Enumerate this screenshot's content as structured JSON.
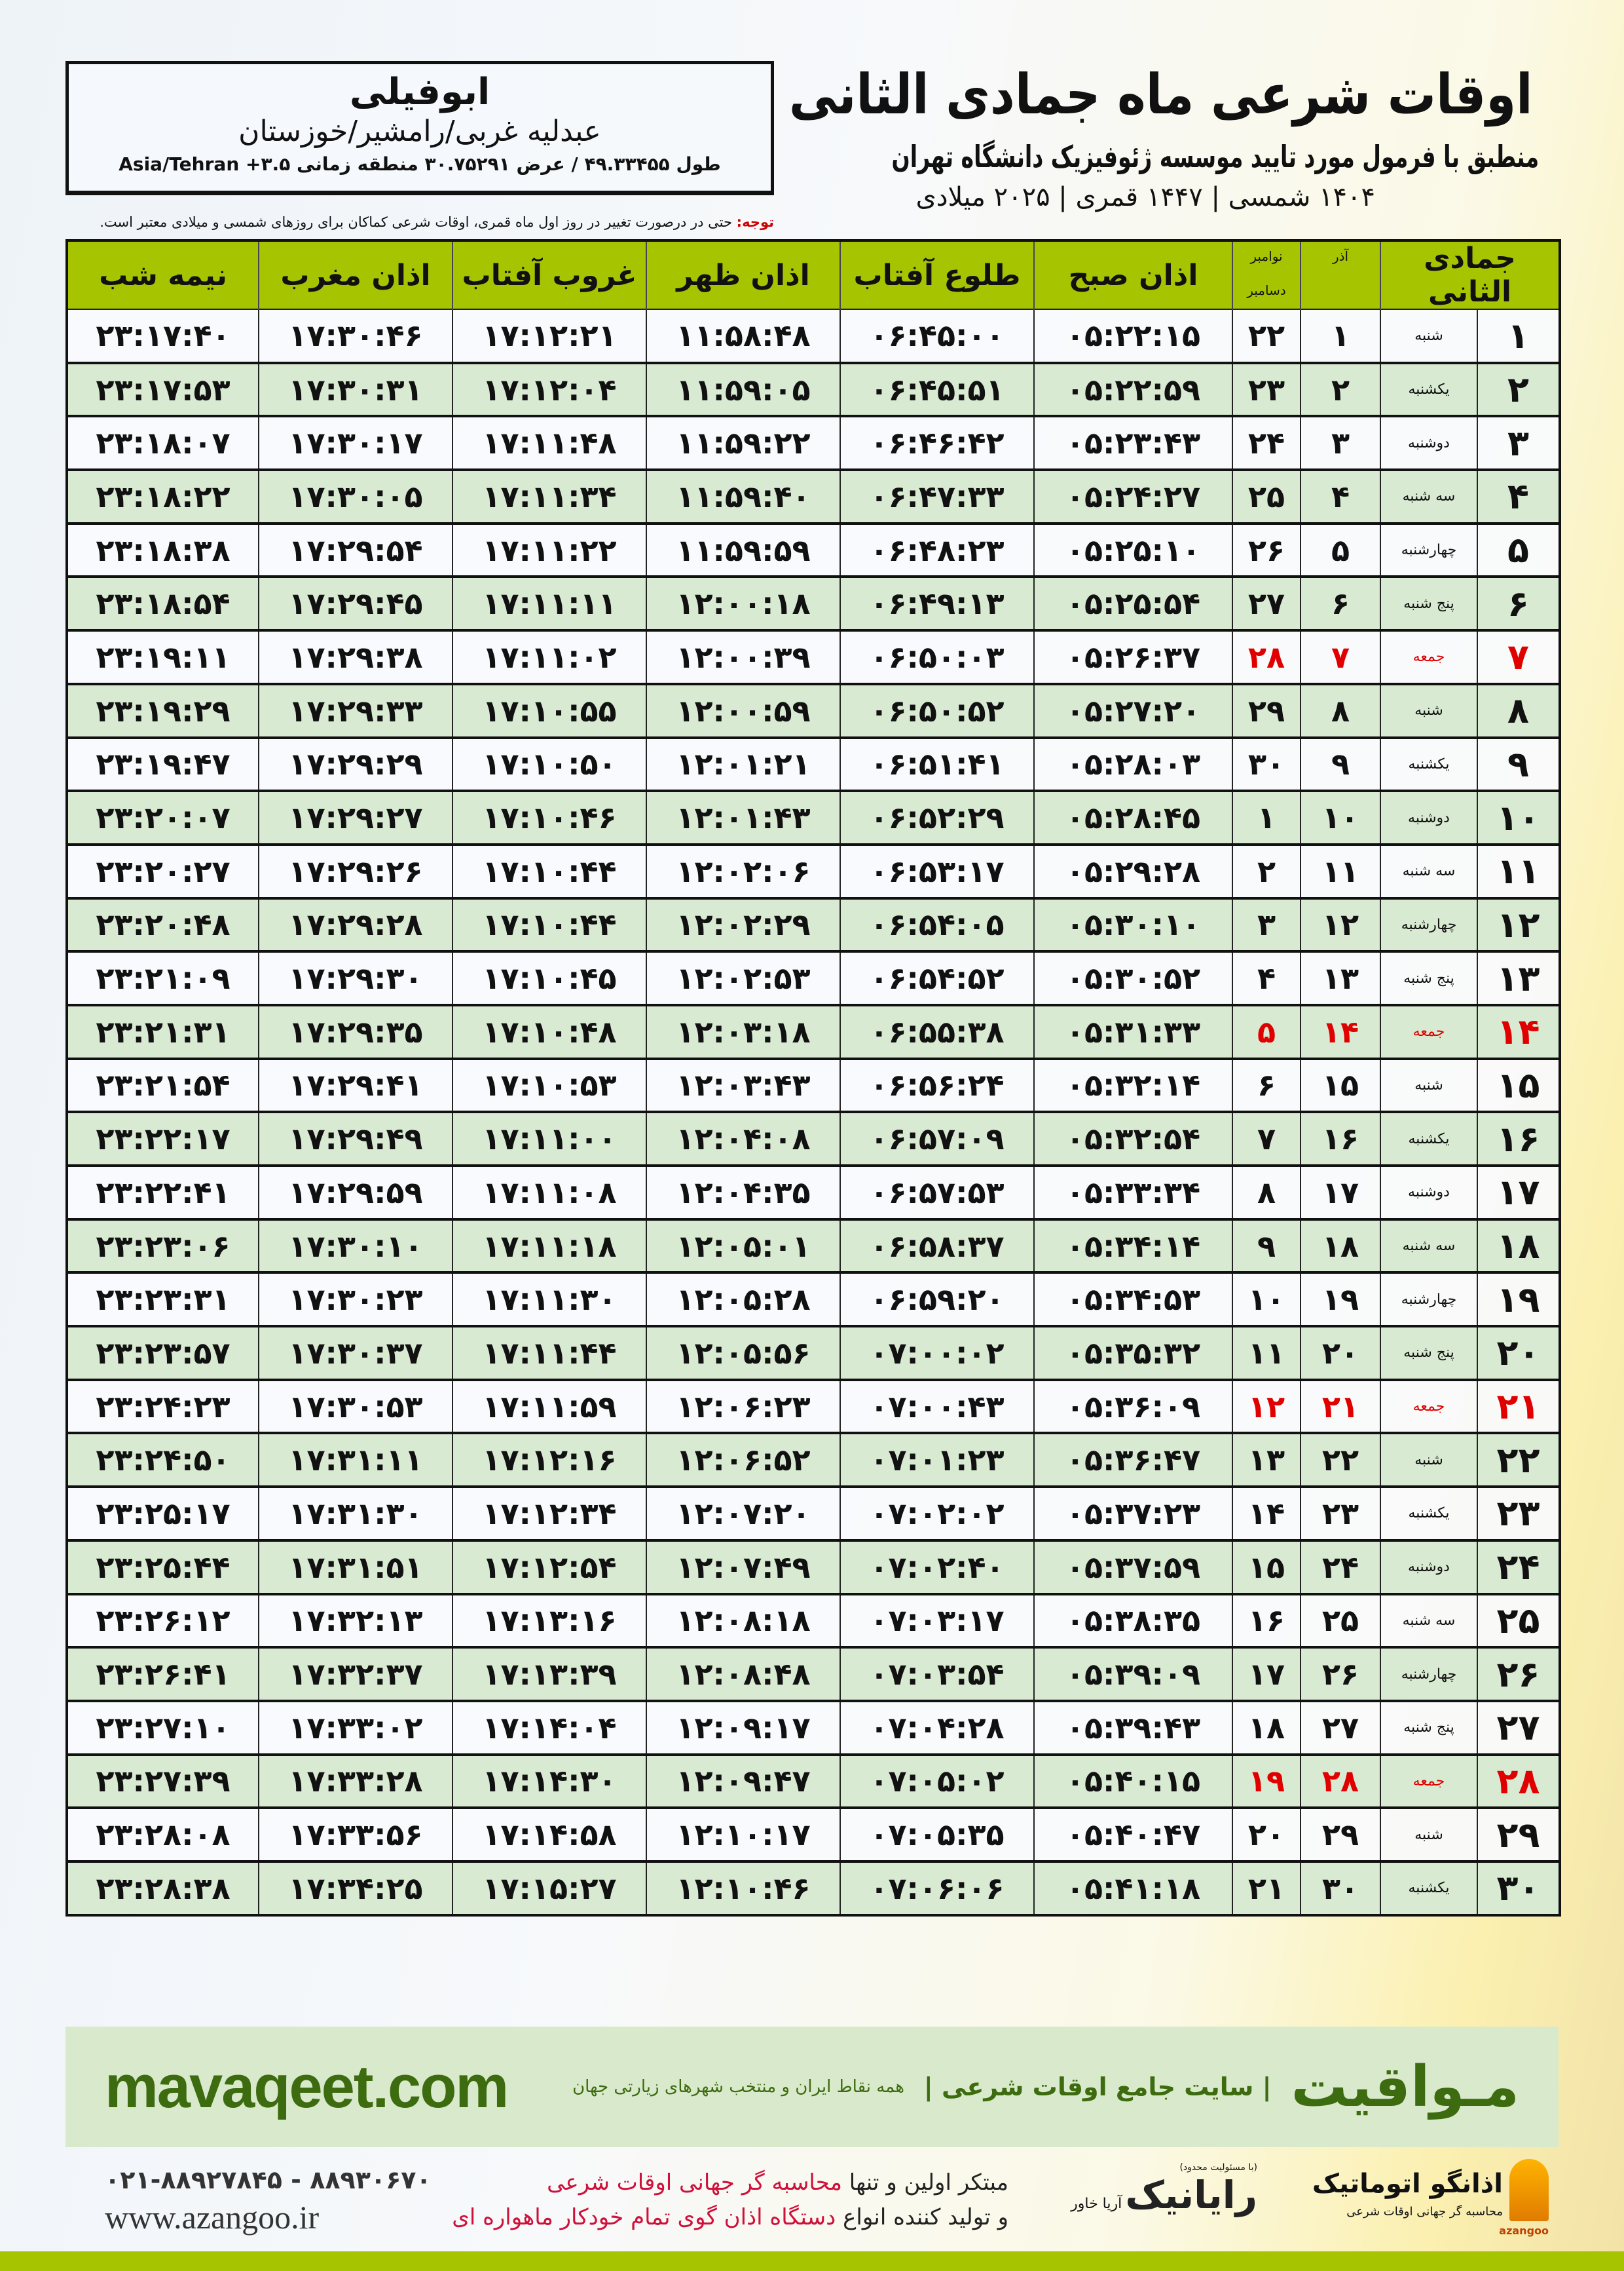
{
  "header": {
    "title": "اوقات شرعی ماه جمادی الثانی",
    "subtitle": "منطبق با فرمول مورد تایید موسسه ژئوفیزیک دانشگاه تهران",
    "dates": "۱۴۰۴ شمسی | ۱۴۴۷ قمری | ۲۰۲۵ میلادی"
  },
  "location": {
    "city": "ابوفیلی",
    "region": "عبدلیه غربی/رامشیر/خوزستان",
    "coords": "طول ۴۹.۳۳۴۵۵ / عرض ۳۰.۷۵۲۹۱ منطقه زمانی ۳.۵+ Asia/Tehran"
  },
  "note": {
    "label": "توجه:",
    "text": " حتی در درصورت تغییر در روز اول ماه قمری، اوقات شرعی کماکان برای روزهای شمسی و میلادی معتبر است."
  },
  "table": {
    "headers": {
      "hijri": "جمادی الثانی",
      "azar": "آذر",
      "gregorian_top": "نوامبر",
      "gregorian_bottom": "دسامبر",
      "fajr": "اذان صبح",
      "sunrise": "طلوع آفتاب",
      "dhuhr": "اذان ظهر",
      "sunset": "غروب آفتاب",
      "maghrib": "اذان مغرب",
      "midnight": "نیمه شب"
    },
    "friday_color": "#e00000",
    "rows": [
      [
        "۱",
        "شنبه",
        "۱",
        "۲۲",
        "۰۵:۲۲:۱۵",
        "۰۶:۴۵:۰۰",
        "۱۱:۵۸:۴۸",
        "۱۷:۱۲:۲۱",
        "۱۷:۳۰:۴۶",
        "۲۳:۱۷:۴۰"
      ],
      [
        "۲",
        "یکشنبه",
        "۲",
        "۲۳",
        "۰۵:۲۲:۵۹",
        "۰۶:۴۵:۵۱",
        "۱۱:۵۹:۰۵",
        "۱۷:۱۲:۰۴",
        "۱۷:۳۰:۳۱",
        "۲۳:۱۷:۵۳"
      ],
      [
        "۳",
        "دوشنبه",
        "۳",
        "۲۴",
        "۰۵:۲۳:۴۳",
        "۰۶:۴۶:۴۲",
        "۱۱:۵۹:۲۲",
        "۱۷:۱۱:۴۸",
        "۱۷:۳۰:۱۷",
        "۲۳:۱۸:۰۷"
      ],
      [
        "۴",
        "سه شنبه",
        "۴",
        "۲۵",
        "۰۵:۲۴:۲۷",
        "۰۶:۴۷:۳۳",
        "۱۱:۵۹:۴۰",
        "۱۷:۱۱:۳۴",
        "۱۷:۳۰:۰۵",
        "۲۳:۱۸:۲۲"
      ],
      [
        "۵",
        "چهارشنبه",
        "۵",
        "۲۶",
        "۰۵:۲۵:۱۰",
        "۰۶:۴۸:۲۳",
        "۱۱:۵۹:۵۹",
        "۱۷:۱۱:۲۲",
        "۱۷:۲۹:۵۴",
        "۲۳:۱۸:۳۸"
      ],
      [
        "۶",
        "پنج شنبه",
        "۶",
        "۲۷",
        "۰۵:۲۵:۵۴",
        "۰۶:۴۹:۱۳",
        "۱۲:۰۰:۱۸",
        "۱۷:۱۱:۱۱",
        "۱۷:۲۹:۴۵",
        "۲۳:۱۸:۵۴"
      ],
      [
        "۷",
        "جمعه",
        "۷",
        "۲۸",
        "۰۵:۲۶:۳۷",
        "۰۶:۵۰:۰۳",
        "۱۲:۰۰:۳۹",
        "۱۷:۱۱:۰۲",
        "۱۷:۲۹:۳۸",
        "۲۳:۱۹:۱۱"
      ],
      [
        "۸",
        "شنبه",
        "۸",
        "۲۹",
        "۰۵:۲۷:۲۰",
        "۰۶:۵۰:۵۲",
        "۱۲:۰۰:۵۹",
        "۱۷:۱۰:۵۵",
        "۱۷:۲۹:۳۳",
        "۲۳:۱۹:۲۹"
      ],
      [
        "۹",
        "یکشنبه",
        "۹",
        "۳۰",
        "۰۵:۲۸:۰۳",
        "۰۶:۵۱:۴۱",
        "۱۲:۰۱:۲۱",
        "۱۷:۱۰:۵۰",
        "۱۷:۲۹:۲۹",
        "۲۳:۱۹:۴۷"
      ],
      [
        "۱۰",
        "دوشنبه",
        "۱۰",
        "۱",
        "۰۵:۲۸:۴۵",
        "۰۶:۵۲:۲۹",
        "۱۲:۰۱:۴۳",
        "۱۷:۱۰:۴۶",
        "۱۷:۲۹:۲۷",
        "۲۳:۲۰:۰۷"
      ],
      [
        "۱۱",
        "سه شنبه",
        "۱۱",
        "۲",
        "۰۵:۲۹:۲۸",
        "۰۶:۵۳:۱۷",
        "۱۲:۰۲:۰۶",
        "۱۷:۱۰:۴۴",
        "۱۷:۲۹:۲۶",
        "۲۳:۲۰:۲۷"
      ],
      [
        "۱۲",
        "چهارشنبه",
        "۱۲",
        "۳",
        "۰۵:۳۰:۱۰",
        "۰۶:۵۴:۰۵",
        "۱۲:۰۲:۲۹",
        "۱۷:۱۰:۴۴",
        "۱۷:۲۹:۲۸",
        "۲۳:۲۰:۴۸"
      ],
      [
        "۱۳",
        "پنج شنبه",
        "۱۳",
        "۴",
        "۰۵:۳۰:۵۲",
        "۰۶:۵۴:۵۲",
        "۱۲:۰۲:۵۳",
        "۱۷:۱۰:۴۵",
        "۱۷:۲۹:۳۰",
        "۲۳:۲۱:۰۹"
      ],
      [
        "۱۴",
        "جمعه",
        "۱۴",
        "۵",
        "۰۵:۳۱:۳۳",
        "۰۶:۵۵:۳۸",
        "۱۲:۰۳:۱۸",
        "۱۷:۱۰:۴۸",
        "۱۷:۲۹:۳۵",
        "۲۳:۲۱:۳۱"
      ],
      [
        "۱۵",
        "شنبه",
        "۱۵",
        "۶",
        "۰۵:۳۲:۱۴",
        "۰۶:۵۶:۲۴",
        "۱۲:۰۳:۴۳",
        "۱۷:۱۰:۵۳",
        "۱۷:۲۹:۴۱",
        "۲۳:۲۱:۵۴"
      ],
      [
        "۱۶",
        "یکشنبه",
        "۱۶",
        "۷",
        "۰۵:۳۲:۵۴",
        "۰۶:۵۷:۰۹",
        "۱۲:۰۴:۰۸",
        "۱۷:۱۱:۰۰",
        "۱۷:۲۹:۴۹",
        "۲۳:۲۲:۱۷"
      ],
      [
        "۱۷",
        "دوشنبه",
        "۱۷",
        "۸",
        "۰۵:۳۳:۳۴",
        "۰۶:۵۷:۵۳",
        "۱۲:۰۴:۳۵",
        "۱۷:۱۱:۰۸",
        "۱۷:۲۹:۵۹",
        "۲۳:۲۲:۴۱"
      ],
      [
        "۱۸",
        "سه شنبه",
        "۱۸",
        "۹",
        "۰۵:۳۴:۱۴",
        "۰۶:۵۸:۳۷",
        "۱۲:۰۵:۰۱",
        "۱۷:۱۱:۱۸",
        "۱۷:۳۰:۱۰",
        "۲۳:۲۳:۰۶"
      ],
      [
        "۱۹",
        "چهارشنبه",
        "۱۹",
        "۱۰",
        "۰۵:۳۴:۵۳",
        "۰۶:۵۹:۲۰",
        "۱۲:۰۵:۲۸",
        "۱۷:۱۱:۳۰",
        "۱۷:۳۰:۲۳",
        "۲۳:۲۳:۳۱"
      ],
      [
        "۲۰",
        "پنج شنبه",
        "۲۰",
        "۱۱",
        "۰۵:۳۵:۳۲",
        "۰۷:۰۰:۰۲",
        "۱۲:۰۵:۵۶",
        "۱۷:۱۱:۴۴",
        "۱۷:۳۰:۳۷",
        "۲۳:۲۳:۵۷"
      ],
      [
        "۲۱",
        "جمعه",
        "۲۱",
        "۱۲",
        "۰۵:۳۶:۰۹",
        "۰۷:۰۰:۴۳",
        "۱۲:۰۶:۲۳",
        "۱۷:۱۱:۵۹",
        "۱۷:۳۰:۵۳",
        "۲۳:۲۴:۲۳"
      ],
      [
        "۲۲",
        "شنبه",
        "۲۲",
        "۱۳",
        "۰۵:۳۶:۴۷",
        "۰۷:۰۱:۲۳",
        "۱۲:۰۶:۵۲",
        "۱۷:۱۲:۱۶",
        "۱۷:۳۱:۱۱",
        "۲۳:۲۴:۵۰"
      ],
      [
        "۲۳",
        "یکشنبه",
        "۲۳",
        "۱۴",
        "۰۵:۳۷:۲۳",
        "۰۷:۰۲:۰۲",
        "۱۲:۰۷:۲۰",
        "۱۷:۱۲:۳۴",
        "۱۷:۳۱:۳۰",
        "۲۳:۲۵:۱۷"
      ],
      [
        "۲۴",
        "دوشنبه",
        "۲۴",
        "۱۵",
        "۰۵:۳۷:۵۹",
        "۰۷:۰۲:۴۰",
        "۱۲:۰۷:۴۹",
        "۱۷:۱۲:۵۴",
        "۱۷:۳۱:۵۱",
        "۲۳:۲۵:۴۴"
      ],
      [
        "۲۵",
        "سه شنبه",
        "۲۵",
        "۱۶",
        "۰۵:۳۸:۳۵",
        "۰۷:۰۳:۱۷",
        "۱۲:۰۸:۱۸",
        "۱۷:۱۳:۱۶",
        "۱۷:۳۲:۱۳",
        "۲۳:۲۶:۱۲"
      ],
      [
        "۲۶",
        "چهارشنبه",
        "۲۶",
        "۱۷",
        "۰۵:۳۹:۰۹",
        "۰۷:۰۳:۵۴",
        "۱۲:۰۸:۴۸",
        "۱۷:۱۳:۳۹",
        "۱۷:۳۲:۳۷",
        "۲۳:۲۶:۴۱"
      ],
      [
        "۲۷",
        "پنج شنبه",
        "۲۷",
        "۱۸",
        "۰۵:۳۹:۴۳",
        "۰۷:۰۴:۲۸",
        "۱۲:۰۹:۱۷",
        "۱۷:۱۴:۰۴",
        "۱۷:۳۳:۰۲",
        "۲۳:۲۷:۱۰"
      ],
      [
        "۲۸",
        "جمعه",
        "۲۸",
        "۱۹",
        "۰۵:۴۰:۱۵",
        "۰۷:۰۵:۰۲",
        "۱۲:۰۹:۴۷",
        "۱۷:۱۴:۳۰",
        "۱۷:۳۳:۲۸",
        "۲۳:۲۷:۳۹"
      ],
      [
        "۲۹",
        "شنبه",
        "۲۹",
        "۲۰",
        "۰۵:۴۰:۴۷",
        "۰۷:۰۵:۳۵",
        "۱۲:۱۰:۱۷",
        "۱۷:۱۴:۵۸",
        "۱۷:۳۳:۵۶",
        "۲۳:۲۸:۰۸"
      ],
      [
        "۳۰",
        "یکشنبه",
        "۳۰",
        "۲۱",
        "۰۵:۴۱:۱۸",
        "۰۷:۰۶:۰۶",
        "۱۲:۱۰:۴۶",
        "۱۷:۱۵:۲۷",
        "۱۷:۳۴:۲۵",
        "۲۳:۲۸:۳۸"
      ]
    ]
  },
  "footer": {
    "brand": "مـواقیت",
    "tagline": "| سایت جامع اوقات شرعی |",
    "tagline_sub": "همه نقاط ایران و منتخب شهرهای زیارتی جهان",
    "site": "mavaqeet.com",
    "phone": "۰۲۱-۸۸۹۲۷۸۴۵ - ۸۸۹۳۰۶۷۰",
    "web": "www.azangoo.ir",
    "promo_line1_a": "مبتکر اولین و تنها ",
    "promo_line1_b": "محاسبه گر جهانی اوقات شرعی",
    "promo_line2_a": "و تولید کننده انواع ",
    "promo_line2_b": "دستگاه اذان گوی تمام خودکار ماهواره ای",
    "rayanik_small": "(با مسئولیت محدود)",
    "rayanik": "رایانیک",
    "rayanik_sub": "آریا خاور",
    "azangoo_name": "اذانگو اتوماتیک",
    "azangoo_sub": "محاسبه گر جهانی اوقات شرعی",
    "azangoo_latin": "azangoo",
    "accent_color": "#a6c500",
    "row_alt_color": "#d9ead3"
  }
}
